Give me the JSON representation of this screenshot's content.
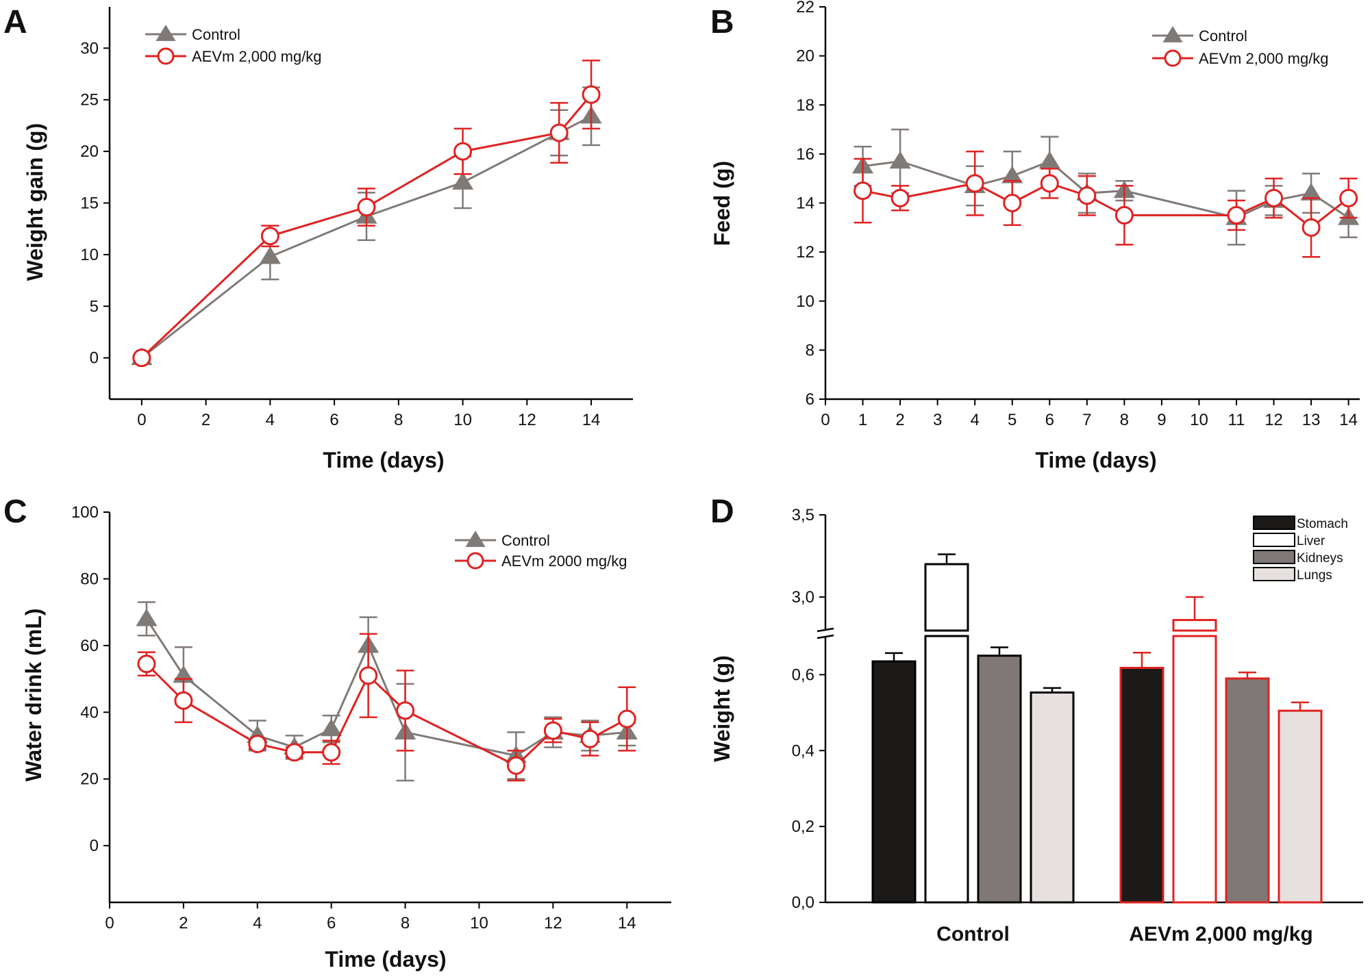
{
  "colors": {
    "control": "#807a77",
    "treated": "#e02121",
    "stomach": "#1c1a18",
    "liver": "#ffffff",
    "kidneys": "#7f7876",
    "lungs": "#e6e0df"
  },
  "chart_data": [
    {
      "panel": "A",
      "type": "line",
      "xlabel": "Time (days)",
      "ylabel": "Weight gain (g)",
      "xlim": [
        -1,
        15.3
      ],
      "ylim": [
        -4,
        34
      ],
      "xticks": [
        "0",
        "2",
        "4",
        "6",
        "8",
        "10",
        "12",
        "14"
      ],
      "yticks": [
        "0",
        "5",
        "10",
        "15",
        "20",
        "25",
        "30"
      ],
      "legend_position": "top-left",
      "series": [
        {
          "name": "Control",
          "marker": "triangle",
          "color": "#807a77",
          "x": [
            0,
            4,
            7,
            10,
            13,
            14
          ],
          "y": [
            0,
            9.8,
            13.7,
            17.0,
            21.8,
            23.4
          ],
          "err": [
            0.2,
            2.2,
            2.3,
            2.5,
            2.2,
            2.8
          ]
        },
        {
          "name": "AEVm 2,000 mg/kg",
          "marker": "circle",
          "color": "#e02121",
          "x": [
            0,
            4,
            7,
            10,
            13,
            14
          ],
          "y": [
            0,
            11.8,
            14.6,
            20.0,
            21.8,
            25.5
          ],
          "err": [
            0.2,
            1.0,
            1.8,
            2.2,
            2.9,
            3.3
          ]
        }
      ]
    },
    {
      "panel": "B",
      "type": "line",
      "xlabel": "Time (days)",
      "ylabel": "Feed (g)",
      "xlim": [
        0,
        14.3
      ],
      "ylim": [
        6,
        22
      ],
      "xticks": [
        "0",
        "1",
        "2",
        "3",
        "4",
        "5",
        "6",
        "7",
        "8",
        "9",
        "10",
        "11",
        "12",
        "13",
        "14"
      ],
      "yticks": [
        "6",
        "8",
        "10",
        "12",
        "14",
        "16",
        "18",
        "20",
        "22"
      ],
      "legend_position": "top-right",
      "series": [
        {
          "name": "Control",
          "marker": "triangle",
          "color": "#807a77",
          "x": [
            1,
            2,
            4,
            5,
            6,
            7,
            8,
            11,
            12,
            13,
            14
          ],
          "y": [
            15.5,
            15.7,
            14.7,
            15.1,
            15.7,
            14.4,
            14.5,
            13.4,
            14.1,
            14.4,
            13.4
          ],
          "err": [
            0.8,
            1.3,
            0.8,
            1.0,
            1.0,
            0.8,
            0.4,
            1.1,
            0.6,
            0.8,
            0.8
          ]
        },
        {
          "name": "AEVm 2,000 mg/kg",
          "marker": "circle",
          "color": "#e02121",
          "x": [
            1,
            2,
            4,
            5,
            6,
            7,
            8,
            11,
            12,
            13,
            14
          ],
          "y": [
            14.5,
            14.2,
            14.8,
            14.0,
            14.8,
            14.3,
            13.5,
            13.5,
            14.2,
            13.0,
            14.2
          ],
          "err": [
            1.3,
            0.5,
            1.3,
            0.9,
            0.6,
            0.8,
            1.2,
            0.6,
            0.8,
            1.2,
            0.8
          ]
        }
      ]
    },
    {
      "panel": "C",
      "type": "line",
      "xlabel": "Time (days)",
      "ylabel": "Water drink (mL)",
      "xlim": [
        0,
        15.2
      ],
      "ylim": [
        -17,
        100
      ],
      "xticks": [
        "0",
        "2",
        "4",
        "6",
        "8",
        "10",
        "12",
        "14"
      ],
      "yticks": [
        "0",
        "20",
        "40",
        "60",
        "80",
        "100"
      ],
      "legend_position": "top-right",
      "series": [
        {
          "name": "Control",
          "marker": "triangle",
          "color": "#807a77",
          "x": [
            1,
            2,
            4,
            5,
            6,
            7,
            8,
            11,
            12,
            13,
            14
          ],
          "y": [
            68,
            51,
            33,
            29.5,
            35,
            60,
            34,
            27,
            34,
            33,
            34
          ],
          "err": [
            5,
            8.5,
            4.5,
            3.5,
            4,
            8.5,
            14.5,
            7,
            4.5,
            4.5,
            4
          ]
        },
        {
          "name": "AEVm 2000 mg/kg",
          "marker": "circle",
          "color": "#e02121",
          "x": [
            1,
            2,
            4,
            5,
            6,
            7,
            8,
            11,
            12,
            13,
            14
          ],
          "y": [
            54.5,
            43.5,
            30.5,
            28,
            28,
            51,
            40.5,
            24,
            34.5,
            32,
            38
          ],
          "err": [
            3.5,
            6.5,
            1.5,
            1.5,
            3.5,
            12.5,
            12,
            4.5,
            3.5,
            5,
            9.5
          ]
        }
      ]
    },
    {
      "panel": "D",
      "type": "bar",
      "xlabel": "",
      "ylabel": "Weight (g)",
      "ylim": [
        0,
        3.5
      ],
      "axis_break": [
        0.7,
        2.8
      ],
      "yticks": [
        "0,0",
        "0,2",
        "0,4",
        "0,6",
        "3,0",
        "3,5"
      ],
      "categories": [
        "Control",
        "AEVm 2,000 mg/kg"
      ],
      "legend_position": "top-right",
      "series": [
        {
          "name": "Stomach",
          "values": [
            0.635,
            0.618
          ],
          "err": [
            0.022,
            0.04
          ]
        },
        {
          "name": "Liver",
          "values": [
            3.2,
            2.86
          ],
          "err": [
            0.06,
            0.14
          ]
        },
        {
          "name": "Kidneys",
          "values": [
            0.65,
            0.59
          ],
          "err": [
            0.022,
            0.016
          ]
        },
        {
          "name": "Lungs",
          "values": [
            0.553,
            0.505
          ],
          "err": [
            0.012,
            0.022
          ]
        }
      ]
    }
  ]
}
